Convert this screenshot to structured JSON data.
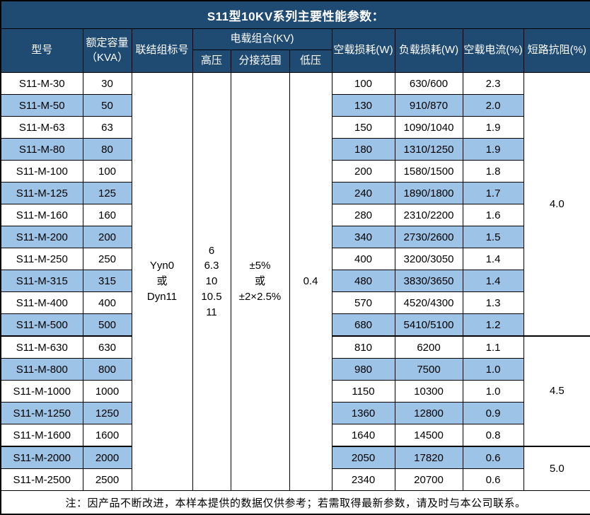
{
  "title": "S11型10KV系列主要性能参数：",
  "colors": {
    "header_bg": "#1F4A72",
    "stripe_bg": "#9DC3E6",
    "border": "#000000",
    "header_text": "#FFFFFF"
  },
  "table": {
    "headers": {
      "model": "型号",
      "capacity": "额定容量\n（KVA）",
      "connection": "联结组标号",
      "voltage_group": "电载组合(KV)",
      "high_voltage": "高压",
      "tap_range": "分接范围",
      "low_voltage": "低压",
      "no_load_loss": "空载损耗(W)",
      "load_loss": "负载损耗(W)",
      "no_load_current": "空载电流(%)",
      "impedance": "短路抗阻(%)"
    },
    "merged_cells": {
      "connection": [
        "Yyn0",
        "或",
        "Dyn11"
      ],
      "high_voltage": [
        "6",
        "6.3",
        "10",
        "10.5",
        "11"
      ],
      "tap_range": [
        "±5%",
        "或",
        "±2×2.5%"
      ],
      "low_voltage": "0.4"
    },
    "rows": [
      {
        "model": "S11-M-30",
        "capacity": "30",
        "no_load_loss": "100",
        "load_loss": "630/600",
        "no_load_current": "2.3"
      },
      {
        "model": "S11-M-50",
        "capacity": "50",
        "no_load_loss": "130",
        "load_loss": "910/870",
        "no_load_current": "2.0"
      },
      {
        "model": "S11-M-63",
        "capacity": "63",
        "no_load_loss": "150",
        "load_loss": "1090/1040",
        "no_load_current": "1.9"
      },
      {
        "model": "S11-M-80",
        "capacity": "80",
        "no_load_loss": "180",
        "load_loss": "1310/1250",
        "no_load_current": "1.9"
      },
      {
        "model": "S11-M-100",
        "capacity": "100",
        "no_load_loss": "200",
        "load_loss": "1580/1500",
        "no_load_current": "1.8"
      },
      {
        "model": "S11-M-125",
        "capacity": "125",
        "no_load_loss": "240",
        "load_loss": "1890/1800",
        "no_load_current": "1.7"
      },
      {
        "model": "S11-M-160",
        "capacity": "160",
        "no_load_loss": "280",
        "load_loss": "2310/2200",
        "no_load_current": "1.6"
      },
      {
        "model": "S11-M-200",
        "capacity": "200",
        "no_load_loss": "340",
        "load_loss": "2730/2600",
        "no_load_current": "1.5"
      },
      {
        "model": "S11-M-250",
        "capacity": "250",
        "no_load_loss": "400",
        "load_loss": "3200/3050",
        "no_load_current": "1.4"
      },
      {
        "model": "S11-M-315",
        "capacity": "315",
        "no_load_loss": "480",
        "load_loss": "3830/3650",
        "no_load_current": "1.4"
      },
      {
        "model": "S11-M-400",
        "capacity": "400",
        "no_load_loss": "570",
        "load_loss": "4520/4300",
        "no_load_current": "1.3"
      },
      {
        "model": "S11-M-500",
        "capacity": "500",
        "no_load_loss": "680",
        "load_loss": "5410/5100",
        "no_load_current": "1.2"
      },
      {
        "model": "S11-M-630",
        "capacity": "630",
        "no_load_loss": "810",
        "load_loss": "6200",
        "no_load_current": "1.1"
      },
      {
        "model": "S11-M-800",
        "capacity": "800",
        "no_load_loss": "980",
        "load_loss": "7500",
        "no_load_current": "1.0"
      },
      {
        "model": "S11-M-1000",
        "capacity": "1000",
        "no_load_loss": "1150",
        "load_loss": "10300",
        "no_load_current": "1.0"
      },
      {
        "model": "S11-M-1250",
        "capacity": "1250",
        "no_load_loss": "1360",
        "load_loss": "12800",
        "no_load_current": "0.9"
      },
      {
        "model": "S11-M-1600",
        "capacity": "1600",
        "no_load_loss": "1640",
        "load_loss": "14500",
        "no_load_current": "0.8"
      },
      {
        "model": "S11-M-2000",
        "capacity": "2000",
        "no_load_loss": "2050",
        "load_loss": "17820",
        "no_load_current": "0.6"
      },
      {
        "model": "S11-M-2500",
        "capacity": "2500",
        "no_load_loss": "2340",
        "load_loss": "20700",
        "no_load_current": "0.6"
      }
    ],
    "impedance_groups": [
      {
        "value": "4.0",
        "span": 12
      },
      {
        "value": "4.5",
        "span": 5
      },
      {
        "value": "5.0",
        "span": 2
      }
    ]
  },
  "footer_note": "注：因产品不断改进，本样本提供的数据仅供参考；若需取得最新参数，请及时与本公司联系。"
}
